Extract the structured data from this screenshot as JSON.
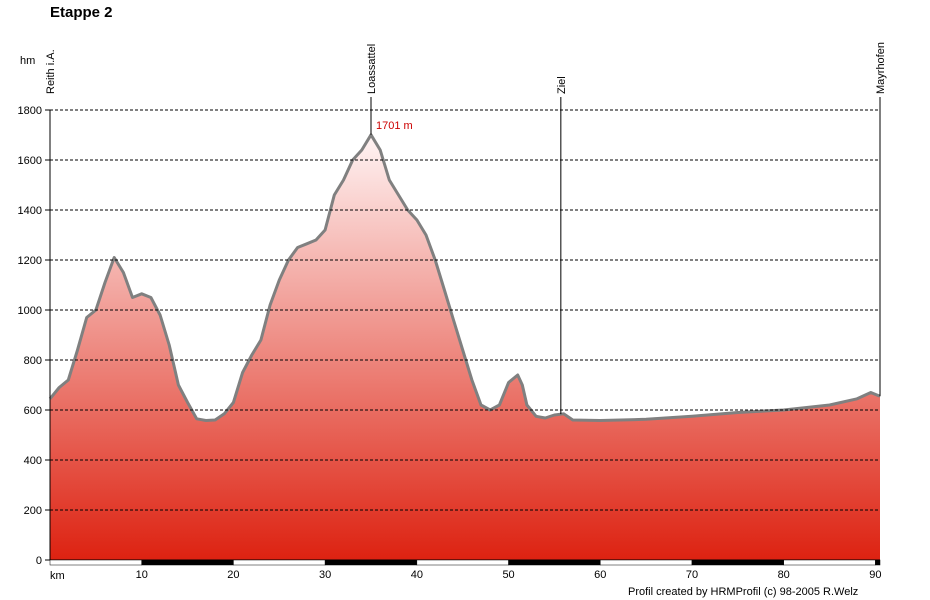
{
  "chart_data": {
    "type": "area",
    "title": "Etappe 2",
    "ylabel": "hm",
    "xlabel": "km",
    "xlim": [
      0,
      90.5
    ],
    "ylim": [
      0,
      1800
    ],
    "yticks": [
      0,
      200,
      400,
      600,
      800,
      1000,
      1200,
      1400,
      1600,
      1800
    ],
    "xticks": [
      10,
      20,
      30,
      40,
      50,
      60,
      70,
      80,
      90
    ],
    "grid": true,
    "series": [
      {
        "points": [
          [
            0,
            645
          ],
          [
            1,
            690
          ],
          [
            2,
            720
          ],
          [
            3,
            840
          ],
          [
            4,
            970
          ],
          [
            5,
            1000
          ],
          [
            6,
            1110
          ],
          [
            7,
            1210
          ],
          [
            8,
            1150
          ],
          [
            9,
            1050
          ],
          [
            10,
            1065
          ],
          [
            11,
            1050
          ],
          [
            12,
            980
          ],
          [
            13,
            860
          ],
          [
            14,
            700
          ],
          [
            15,
            630
          ],
          [
            16,
            565
          ],
          [
            17,
            558
          ],
          [
            18,
            560
          ],
          [
            19,
            585
          ],
          [
            20,
            630
          ],
          [
            21,
            750
          ],
          [
            22,
            820
          ],
          [
            23,
            880
          ],
          [
            24,
            1020
          ],
          [
            25,
            1120
          ],
          [
            26,
            1200
          ],
          [
            27,
            1250
          ],
          [
            28,
            1265
          ],
          [
            29,
            1280
          ],
          [
            30,
            1320
          ],
          [
            31,
            1460
          ],
          [
            32,
            1520
          ],
          [
            33,
            1600
          ],
          [
            34,
            1640
          ],
          [
            35,
            1701
          ],
          [
            36,
            1640
          ],
          [
            37,
            1520
          ],
          [
            38,
            1460
          ],
          [
            39,
            1400
          ],
          [
            40,
            1360
          ],
          [
            41,
            1300
          ],
          [
            42,
            1200
          ],
          [
            43,
            1080
          ],
          [
            44,
            960
          ],
          [
            45,
            840
          ],
          [
            46,
            720
          ],
          [
            47,
            620
          ],
          [
            48,
            600
          ],
          [
            49,
            620
          ],
          [
            50,
            710
          ],
          [
            51,
            740
          ],
          [
            51.5,
            700
          ],
          [
            52,
            620
          ],
          [
            53,
            575
          ],
          [
            54,
            568
          ],
          [
            55,
            580
          ],
          [
            56,
            585
          ],
          [
            57,
            560
          ],
          [
            60,
            558
          ],
          [
            65,
            563
          ],
          [
            70,
            575
          ],
          [
            75,
            590
          ],
          [
            80,
            600
          ],
          [
            85,
            620
          ],
          [
            88,
            645
          ],
          [
            89.5,
            670
          ],
          [
            90.5,
            655
          ]
        ]
      }
    ],
    "waypoints": [
      {
        "name": "Reith i.A.",
        "km": 0
      },
      {
        "name": "Loassattel",
        "km": 35
      },
      {
        "name": "Ziel",
        "km": 55.7
      },
      {
        "name": "Mayrhofen",
        "km": 90.5
      }
    ],
    "annotations": [
      {
        "text": "1701 m",
        "km": 35,
        "elevation": 1701,
        "color": "#cc0000"
      }
    ],
    "colors": {
      "fill_top": "#fff4f4",
      "fill_bottom": "#dd2211",
      "line": "#808080",
      "annotation": "#cc0000"
    },
    "credit": "Profil created by HRMProfil (c) 98-2005 R.Welz"
  }
}
